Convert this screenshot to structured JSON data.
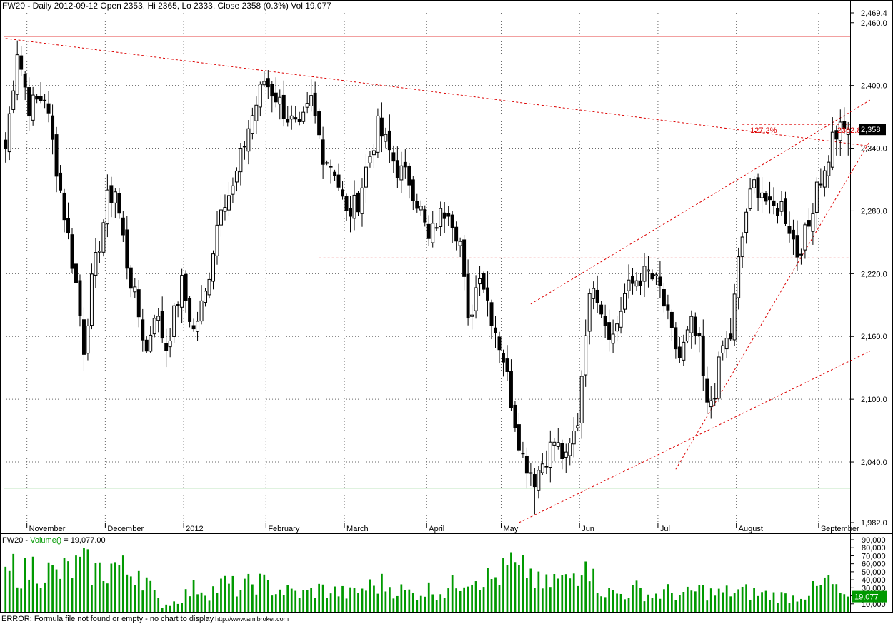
{
  "header": {
    "title": "FW20 - Daily 2012-09-12 Open 2353, Hi 2365, Lo 2333, Close 2358 (0.3%) Vol 19,077"
  },
  "volume_header": {
    "prefix": "FW20 - ",
    "label": "Volume()",
    "suffix": " = 19,077.00"
  },
  "status_bar": {
    "message": "ERROR: Formula file not found or empty - no chart to display",
    "url": "http://www.amibroker.com"
  },
  "price_badge": "2,358",
  "volume_badge": "19,077",
  "annotations": {
    "fib_label": "127.2%",
    "fib_value": "2362.83"
  },
  "colors": {
    "trendline": "#dd0000",
    "support": "#009900",
    "volume_bar": "#009900",
    "candle": "#000000"
  },
  "chart_data": [
    {
      "type": "candlestick",
      "ylim": [
        1982,
        2469.4
      ],
      "price_axis_ticks": [
        "2,469.4",
        "2,460.0",
        "2,400.0",
        "2,340.0",
        "2,280.0",
        "2,220.0",
        "2,160.0",
        "2,100.0",
        "2,040.0",
        "1,982.0"
      ],
      "price_tick_values": [
        2469.4,
        2460,
        2400,
        2340,
        2280,
        2220,
        2160,
        2100,
        2040,
        1982
      ],
      "months": [
        "November",
        "December",
        "2012",
        "February",
        "March",
        "April",
        "May",
        "Jun",
        "Jul",
        "August",
        "September"
      ],
      "month_bar_index": [
        6,
        26,
        46,
        67,
        87,
        108,
        127,
        147,
        167,
        187,
        208
      ],
      "bar_count": 216,
      "close_anchors": [
        [
          0,
          2340
        ],
        [
          3,
          2435
        ],
        [
          6,
          2380
        ],
        [
          10,
          2390
        ],
        [
          14,
          2300
        ],
        [
          18,
          2210
        ],
        [
          20,
          2150
        ],
        [
          22,
          2210
        ],
        [
          26,
          2290
        ],
        [
          28,
          2300
        ],
        [
          31,
          2230
        ],
        [
          34,
          2180
        ],
        [
          36,
          2145
        ],
        [
          38,
          2185
        ],
        [
          41,
          2150
        ],
        [
          45,
          2210
        ],
        [
          48,
          2165
        ],
        [
          51,
          2200
        ],
        [
          55,
          2290
        ],
        [
          58,
          2300
        ],
        [
          62,
          2360
        ],
        [
          66,
          2405
        ],
        [
          69,
          2390
        ],
        [
          72,
          2370
        ],
        [
          75,
          2355
        ],
        [
          78,
          2385
        ],
        [
          81,
          2335
        ],
        [
          84,
          2320
        ],
        [
          87,
          2275
        ],
        [
          90,
          2290
        ],
        [
          92,
          2320
        ],
        [
          95,
          2360
        ],
        [
          97,
          2345
        ],
        [
          100,
          2320
        ],
        [
          103,
          2310
        ],
        [
          106,
          2280
        ],
        [
          108,
          2250
        ],
        [
          110,
          2270
        ],
        [
          113,
          2285
        ],
        [
          116,
          2250
        ],
        [
          118,
          2170
        ],
        [
          121,
          2225
        ],
        [
          124,
          2180
        ],
        [
          127,
          2140
        ],
        [
          130,
          2080
        ],
        [
          132,
          2045
        ],
        [
          135,
          2025
        ],
        [
          137,
          2040
        ],
        [
          140,
          2060
        ],
        [
          143,
          2040
        ],
        [
          146,
          2080
        ],
        [
          148,
          2170
        ],
        [
          150,
          2215
        ],
        [
          153,
          2175
        ],
        [
          155,
          2160
        ],
        [
          158,
          2200
        ],
        [
          161,
          2215
        ],
        [
          164,
          2220
        ],
        [
          167,
          2205
        ],
        [
          170,
          2160
        ],
        [
          172,
          2140
        ],
        [
          175,
          2170
        ],
        [
          177,
          2150
        ],
        [
          179,
          2090
        ],
        [
          181,
          2110
        ],
        [
          183,
          2150
        ],
        [
          185,
          2160
        ],
        [
          187,
          2230
        ],
        [
          189,
          2280
        ],
        [
          191,
          2305
        ],
        [
          193,
          2300
        ],
        [
          195,
          2280
        ],
        [
          198,
          2285
        ],
        [
          200,
          2265
        ],
        [
          202,
          2240
        ],
        [
          205,
          2265
        ],
        [
          207,
          2310
        ],
        [
          209,
          2315
        ],
        [
          211,
          2350
        ],
        [
          213,
          2356
        ],
        [
          215,
          2358
        ]
      ],
      "extremes": {
        "high_nov": 2443,
        "low_may": 1990,
        "last_high": 2365,
        "last_low": 2333
      },
      "horizontal_lines": [
        {
          "price": 2447,
          "color": "#dd0000",
          "style": "solid"
        },
        {
          "price": 2235,
          "color": "#dd0000",
          "style": "dotted"
        },
        {
          "price": 2362.83,
          "color": "#dd0000",
          "style": "dotted"
        },
        {
          "price": 2015,
          "color": "#009900",
          "style": "solid"
        }
      ],
      "trendlines": [
        {
          "from": [
            0,
            2445
          ],
          "to": [
            216,
            2342
          ]
        },
        {
          "from": [
            134,
            2191
          ],
          "to": [
            216,
            2386
          ]
        },
        {
          "from": [
            131,
            1982
          ],
          "to": [
            216,
            2146
          ]
        },
        {
          "from": [
            171,
            2033
          ],
          "to": [
            216,
            2347
          ]
        }
      ]
    },
    {
      "type": "bar",
      "series": [
        {
          "name": "Volume()",
          "last": 19077
        }
      ],
      "ylim": [
        0,
        90000
      ],
      "volume_axis_ticks": [
        "90,000",
        "80,000",
        "70,000",
        "60,000",
        "50,000",
        "40,000",
        "30,000",
        "20,000",
        "10,000"
      ],
      "volume_tick_values": [
        90000,
        80000,
        70000,
        60000,
        50000,
        40000,
        30000,
        20000,
        10000
      ],
      "volume_anchors": [
        [
          0,
          40000
        ],
        [
          2,
          55000
        ],
        [
          5,
          48000
        ],
        [
          7,
          56000
        ],
        [
          10,
          52000
        ],
        [
          13,
          45000
        ],
        [
          15,
          50000
        ],
        [
          18,
          55000
        ],
        [
          20,
          58000
        ],
        [
          23,
          50000
        ],
        [
          26,
          52000
        ],
        [
          28,
          60000
        ],
        [
          31,
          48000
        ],
        [
          34,
          55000
        ],
        [
          36,
          40000
        ],
        [
          38,
          20000
        ],
        [
          40,
          8000
        ],
        [
          43,
          12000
        ],
        [
          46,
          22000
        ],
        [
          49,
          32000
        ],
        [
          52,
          25000
        ],
        [
          56,
          35000
        ],
        [
          60,
          28000
        ],
        [
          64,
          38000
        ],
        [
          68,
          30000
        ],
        [
          72,
          25000
        ],
        [
          76,
          22000
        ],
        [
          80,
          28000
        ],
        [
          84,
          25000
        ],
        [
          88,
          22000
        ],
        [
          92,
          30000
        ],
        [
          96,
          35000
        ],
        [
          100,
          28000
        ],
        [
          104,
          22000
        ],
        [
          108,
          28000
        ],
        [
          112,
          25000
        ],
        [
          116,
          40000
        ],
        [
          118,
          48000
        ],
        [
          121,
          45000
        ],
        [
          124,
          40000
        ],
        [
          127,
          48000
        ],
        [
          129,
          60000
        ],
        [
          131,
          45000
        ],
        [
          133,
          55000
        ],
        [
          135,
          40000
        ],
        [
          137,
          30000
        ],
        [
          140,
          40000
        ],
        [
          143,
          38000
        ],
        [
          146,
          52000
        ],
        [
          148,
          88000
        ],
        [
          150,
          40000
        ],
        [
          153,
          25000
        ],
        [
          157,
          22000
        ],
        [
          161,
          28000
        ],
        [
          165,
          20000
        ],
        [
          169,
          25000
        ],
        [
          173,
          20000
        ],
        [
          177,
          28000
        ],
        [
          181,
          22000
        ],
        [
          185,
          25000
        ],
        [
          189,
          25000
        ],
        [
          193,
          22000
        ],
        [
          197,
          20000
        ],
        [
          201,
          18000
        ],
        [
          205,
          25000
        ],
        [
          208,
          30000
        ],
        [
          210,
          40000
        ],
        [
          212,
          25000
        ],
        [
          215,
          19077
        ]
      ]
    }
  ]
}
